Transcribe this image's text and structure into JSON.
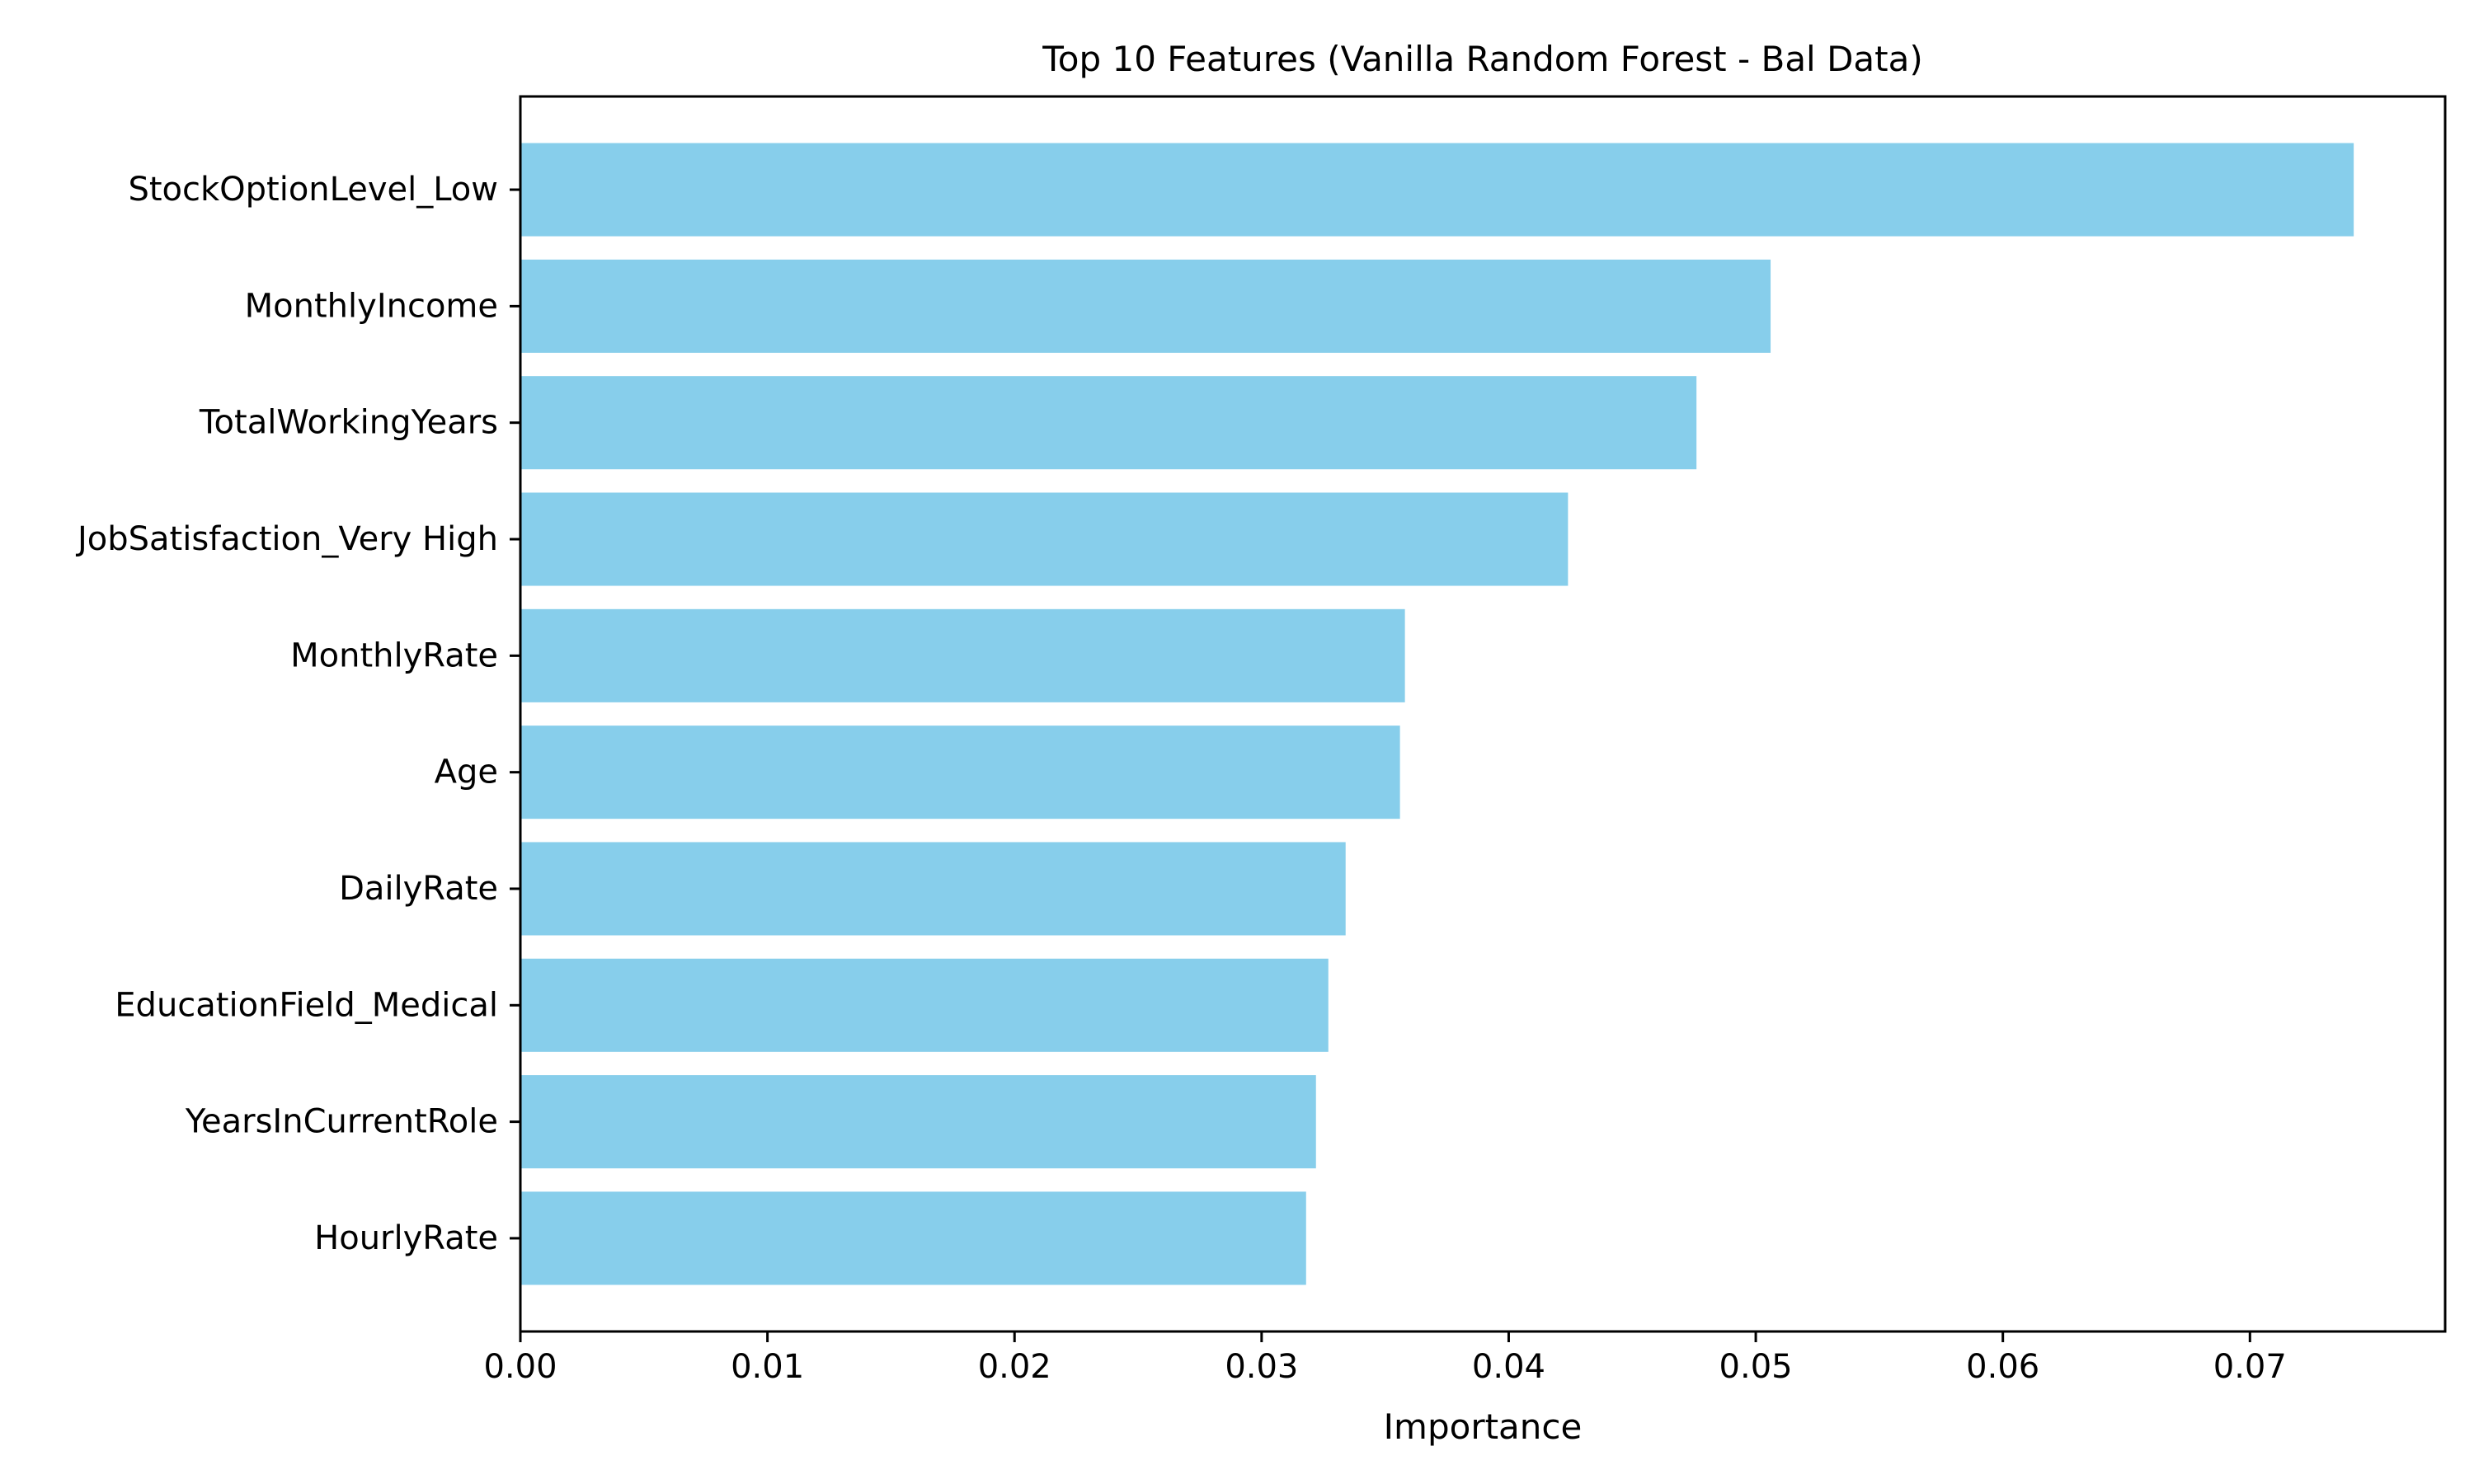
{
  "chart_data": {
    "type": "bar",
    "orientation": "horizontal",
    "title": "Top 10 Features (Vanilla Random Forest - Bal Data)",
    "xlabel": "Importance",
    "ylabel": "",
    "xlim": [
      0,
      0.0779
    ],
    "xticks": [
      0.0,
      0.01,
      0.02,
      0.03,
      0.04,
      0.05,
      0.06,
      0.07
    ],
    "xtick_labels": [
      "0.00",
      "0.01",
      "0.02",
      "0.03",
      "0.04",
      "0.05",
      "0.06",
      "0.07"
    ],
    "grid": false,
    "legend": "none",
    "bar_color": "#87CEEB",
    "categories": [
      "StockOptionLevel_Low",
      "MonthlyIncome",
      "TotalWorkingYears",
      "JobSatisfaction_Very High",
      "MonthlyRate",
      "Age",
      "DailyRate",
      "EducationField_Medical",
      "YearsInCurrentRole",
      "HourlyRate"
    ],
    "values": [
      0.0742,
      0.0506,
      0.0476,
      0.0424,
      0.0358,
      0.0356,
      0.0334,
      0.0327,
      0.0322,
      0.0318
    ]
  }
}
